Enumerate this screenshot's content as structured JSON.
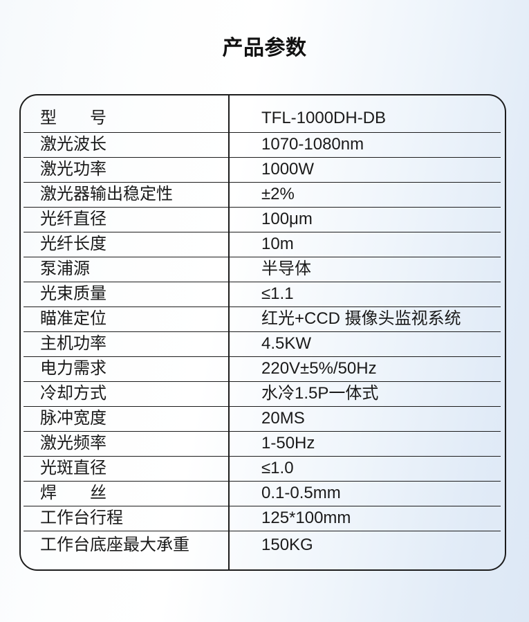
{
  "page": {
    "title": "产品参数"
  },
  "spec_table": {
    "rows": [
      {
        "label": "型　　号",
        "value": "TFL-1000DH-DB"
      },
      {
        "label": "激光波长",
        "value": "1070-1080nm"
      },
      {
        "label": "激光功率",
        "value": "1000W"
      },
      {
        "label": "激光器输出稳定性",
        "value": "±2%"
      },
      {
        "label": "光纤直径",
        "value": "100μm"
      },
      {
        "label": "光纤长度",
        "value": "10m"
      },
      {
        "label": "泵浦源",
        "value": "半导体"
      },
      {
        "label": "光束质量",
        "value": "≤1.1"
      },
      {
        "label": "瞄准定位",
        "value": "红光+CCD 摄像头监视系统"
      },
      {
        "label": "主机功率",
        "value": "4.5KW"
      },
      {
        "label": "电力需求",
        "value": "220V±5%/50Hz"
      },
      {
        "label": "冷却方式",
        "value": "水冷1.5P一体式"
      },
      {
        "label": "脉冲宽度",
        "value": "20MS"
      },
      {
        "label": "激光频率",
        "value": "1-50Hz"
      },
      {
        "label": "光斑直径",
        "value": "≤1.0"
      },
      {
        "label": "焊　　丝",
        "value": "0.1-0.5mm"
      },
      {
        "label": "工作台行程",
        "value": "125*100mm"
      },
      {
        "label": "工作台底座最大承重",
        "value": "150KG"
      }
    ]
  },
  "colors": {
    "text": "#1a1a1a",
    "table_border": "#1c1c1c",
    "background_light": "#ffffff",
    "background_blue_tint": "#dde8f5"
  }
}
